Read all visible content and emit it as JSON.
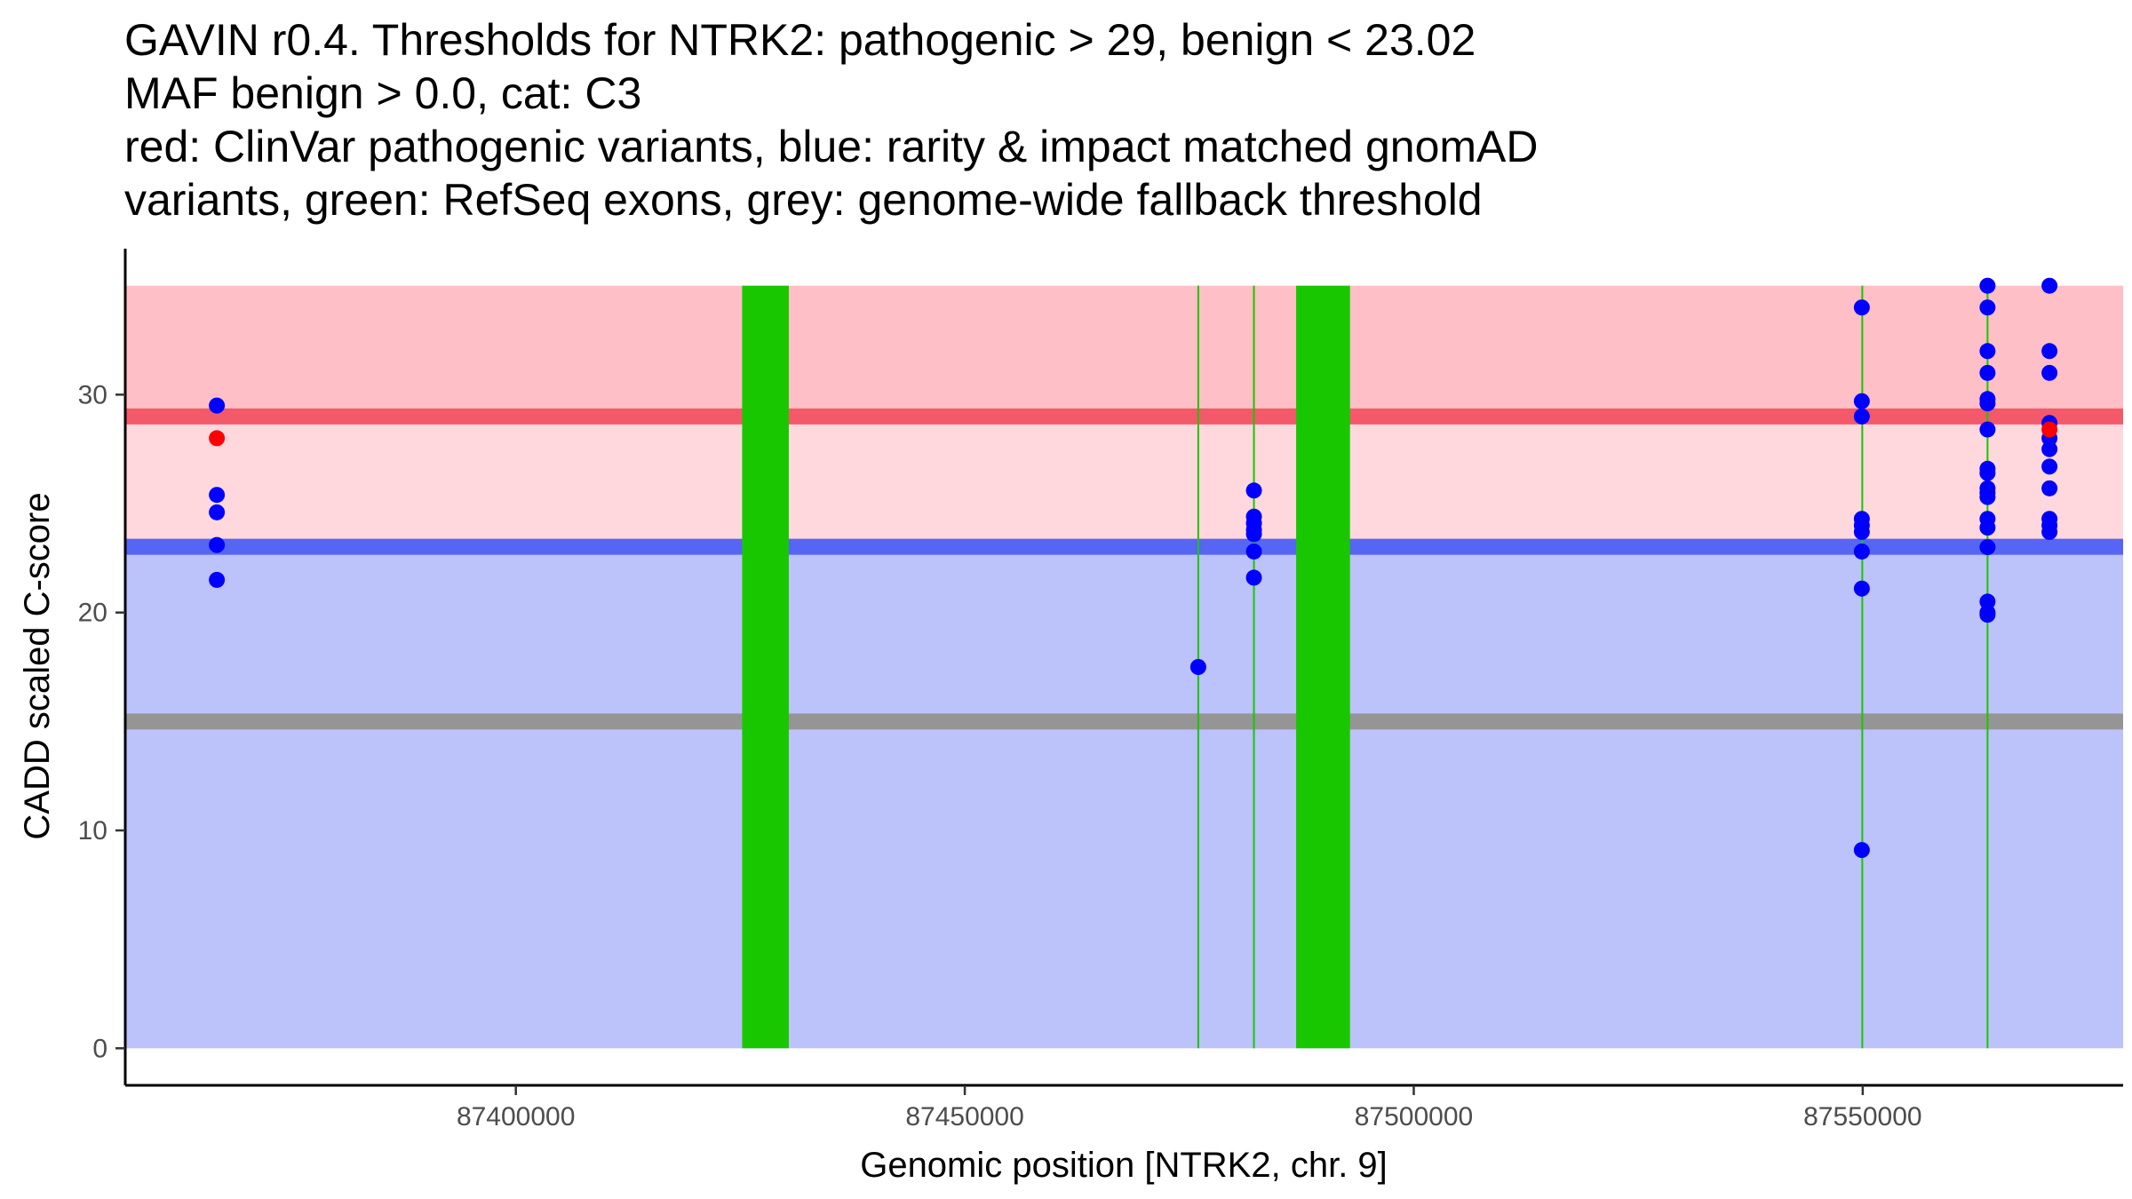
{
  "chart_data": {
    "type": "scatter",
    "title_lines": [
      "GAVIN r0.4. Thresholds for NTRK2: pathogenic > 29, benign < 23.02",
      "MAF benign > 0.0, cat: C3",
      "red: ClinVar pathogenic variants, blue: rarity & impact matched gnomAD",
      "variants, green: RefSeq exons, grey: genome-wide fallback threshold"
    ],
    "xlabel": "Genomic position [NTRK2, chr. 9]",
    "ylabel": "CADD scaled C-score",
    "xlim": [
      87356500,
      87579000
    ],
    "ylim": [
      -1.7,
      36.7
    ],
    "x_ticks": [
      {
        "value": 87400000,
        "label": "87400000"
      },
      {
        "value": 87450000,
        "label": "87450000"
      },
      {
        "value": 87500000,
        "label": "87500000"
      },
      {
        "value": 87550000,
        "label": "87550000"
      }
    ],
    "y_ticks": [
      {
        "value": 0,
        "label": "0"
      },
      {
        "value": 10,
        "label": "10"
      },
      {
        "value": 20,
        "label": "20"
      },
      {
        "value": 30,
        "label": "30"
      }
    ],
    "colors": {
      "pathogenic_region": "#ffbfc6",
      "between_region": "#ffd8de",
      "benign_region": "#bcc2fa",
      "pathogenic_line": "#f4596a",
      "benign_line": "#5665f3",
      "fallback_line": "#959595",
      "exon": "#19c700",
      "blue_point": "#0000ff",
      "red_point": "#ff0000",
      "axis": "#000000"
    },
    "thresholds": {
      "pathogenic": 29,
      "benign": 23.02,
      "fallback": 15,
      "score_max": 35
    },
    "exons": [
      {
        "start": 87425200,
        "end": 87430400
      },
      {
        "start": 87475900,
        "end": 87476100
      },
      {
        "start": 87482100,
        "end": 87482300
      },
      {
        "start": 87486900,
        "end": 87492900
      },
      {
        "start": 87549850,
        "end": 87550050
      },
      {
        "start": 87563800,
        "end": 87564000
      }
    ],
    "series": [
      {
        "name": "gnomAD",
        "color": "#0000ff",
        "points": [
          [
            87366700,
            29.5
          ],
          [
            87366700,
            25.4
          ],
          [
            87366700,
            24.6
          ],
          [
            87366700,
            23.1
          ],
          [
            87366700,
            21.5
          ],
          [
            87476000,
            17.5
          ],
          [
            87482200,
            25.6
          ],
          [
            87482200,
            24.4
          ],
          [
            87482200,
            24.1
          ],
          [
            87482200,
            23.8
          ],
          [
            87482200,
            23.6
          ],
          [
            87482200,
            22.8
          ],
          [
            87482200,
            21.6
          ],
          [
            87549900,
            34.0
          ],
          [
            87549900,
            29.7
          ],
          [
            87549900,
            29.0
          ],
          [
            87549900,
            24.3
          ],
          [
            87549900,
            24.0
          ],
          [
            87549900,
            23.7
          ],
          [
            87549900,
            22.8
          ],
          [
            87549900,
            21.1
          ],
          [
            87549900,
            9.1
          ],
          [
            87563900,
            35.0
          ],
          [
            87563900,
            34.0
          ],
          [
            87563900,
            32.0
          ],
          [
            87563900,
            31.0
          ],
          [
            87563900,
            29.8
          ],
          [
            87563900,
            29.6
          ],
          [
            87563900,
            28.4
          ],
          [
            87563900,
            26.6
          ],
          [
            87563900,
            26.4
          ],
          [
            87563900,
            25.7
          ],
          [
            87563900,
            25.5
          ],
          [
            87563900,
            25.3
          ],
          [
            87563900,
            24.3
          ],
          [
            87563900,
            23.9
          ],
          [
            87563900,
            23.0
          ],
          [
            87563900,
            20.5
          ],
          [
            87563900,
            20.0
          ],
          [
            87563900,
            19.9
          ],
          [
            87570800,
            35.0
          ],
          [
            87570800,
            32.0
          ],
          [
            87570800,
            31.0
          ],
          [
            87570800,
            28.7
          ],
          [
            87570800,
            28.0
          ],
          [
            87570800,
            27.5
          ],
          [
            87570800,
            26.7
          ],
          [
            87570800,
            25.7
          ],
          [
            87570800,
            24.3
          ],
          [
            87570800,
            24.0
          ],
          [
            87570800,
            23.7
          ]
        ]
      },
      {
        "name": "ClinVar",
        "color": "#ff0000",
        "points": [
          [
            87366700,
            28.0
          ],
          [
            87570800,
            28.4
          ]
        ]
      }
    ]
  }
}
